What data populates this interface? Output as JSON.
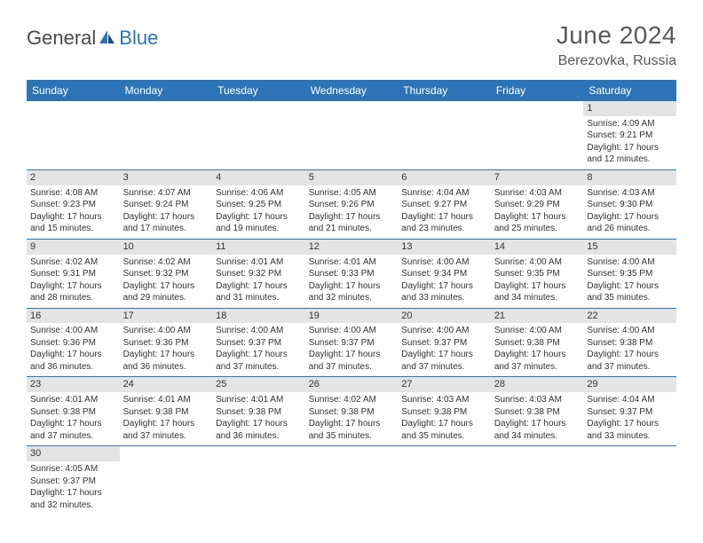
{
  "header": {
    "logo_part1": "General",
    "logo_part2": "Blue",
    "month_title": "June 2024",
    "location": "Berezovka, Russia"
  },
  "colors": {
    "header_bg": "#2d74b6",
    "header_text": "#ffffff",
    "daynum_bg": "#e4e4e4",
    "row_border": "#2d74b6",
    "logo_gray": "#4a4a4a",
    "logo_blue": "#2d74b6",
    "text_gray": "#5a5a5a"
  },
  "weekdays": [
    "Sunday",
    "Monday",
    "Tuesday",
    "Wednesday",
    "Thursday",
    "Friday",
    "Saturday"
  ],
  "weeks": [
    [
      null,
      null,
      null,
      null,
      null,
      null,
      {
        "n": "1",
        "sr": "4:09 AM",
        "ss": "9:21 PM",
        "dl": "17 hours and 12 minutes."
      }
    ],
    [
      {
        "n": "2",
        "sr": "4:08 AM",
        "ss": "9:23 PM",
        "dl": "17 hours and 15 minutes."
      },
      {
        "n": "3",
        "sr": "4:07 AM",
        "ss": "9:24 PM",
        "dl": "17 hours and 17 minutes."
      },
      {
        "n": "4",
        "sr": "4:06 AM",
        "ss": "9:25 PM",
        "dl": "17 hours and 19 minutes."
      },
      {
        "n": "5",
        "sr": "4:05 AM",
        "ss": "9:26 PM",
        "dl": "17 hours and 21 minutes."
      },
      {
        "n": "6",
        "sr": "4:04 AM",
        "ss": "9:27 PM",
        "dl": "17 hours and 23 minutes."
      },
      {
        "n": "7",
        "sr": "4:03 AM",
        "ss": "9:29 PM",
        "dl": "17 hours and 25 minutes."
      },
      {
        "n": "8",
        "sr": "4:03 AM",
        "ss": "9:30 PM",
        "dl": "17 hours and 26 minutes."
      }
    ],
    [
      {
        "n": "9",
        "sr": "4:02 AM",
        "ss": "9:31 PM",
        "dl": "17 hours and 28 minutes."
      },
      {
        "n": "10",
        "sr": "4:02 AM",
        "ss": "9:32 PM",
        "dl": "17 hours and 29 minutes."
      },
      {
        "n": "11",
        "sr": "4:01 AM",
        "ss": "9:32 PM",
        "dl": "17 hours and 31 minutes."
      },
      {
        "n": "12",
        "sr": "4:01 AM",
        "ss": "9:33 PM",
        "dl": "17 hours and 32 minutes."
      },
      {
        "n": "13",
        "sr": "4:00 AM",
        "ss": "9:34 PM",
        "dl": "17 hours and 33 minutes."
      },
      {
        "n": "14",
        "sr": "4:00 AM",
        "ss": "9:35 PM",
        "dl": "17 hours and 34 minutes."
      },
      {
        "n": "15",
        "sr": "4:00 AM",
        "ss": "9:35 PM",
        "dl": "17 hours and 35 minutes."
      }
    ],
    [
      {
        "n": "16",
        "sr": "4:00 AM",
        "ss": "9:36 PM",
        "dl": "17 hours and 36 minutes."
      },
      {
        "n": "17",
        "sr": "4:00 AM",
        "ss": "9:36 PM",
        "dl": "17 hours and 36 minutes."
      },
      {
        "n": "18",
        "sr": "4:00 AM",
        "ss": "9:37 PM",
        "dl": "17 hours and 37 minutes."
      },
      {
        "n": "19",
        "sr": "4:00 AM",
        "ss": "9:37 PM",
        "dl": "17 hours and 37 minutes."
      },
      {
        "n": "20",
        "sr": "4:00 AM",
        "ss": "9:37 PM",
        "dl": "17 hours and 37 minutes."
      },
      {
        "n": "21",
        "sr": "4:00 AM",
        "ss": "9:38 PM",
        "dl": "17 hours and 37 minutes."
      },
      {
        "n": "22",
        "sr": "4:00 AM",
        "ss": "9:38 PM",
        "dl": "17 hours and 37 minutes."
      }
    ],
    [
      {
        "n": "23",
        "sr": "4:01 AM",
        "ss": "9:38 PM",
        "dl": "17 hours and 37 minutes."
      },
      {
        "n": "24",
        "sr": "4:01 AM",
        "ss": "9:38 PM",
        "dl": "17 hours and 37 minutes."
      },
      {
        "n": "25",
        "sr": "4:01 AM",
        "ss": "9:38 PM",
        "dl": "17 hours and 36 minutes."
      },
      {
        "n": "26",
        "sr": "4:02 AM",
        "ss": "9:38 PM",
        "dl": "17 hours and 35 minutes."
      },
      {
        "n": "27",
        "sr": "4:03 AM",
        "ss": "9:38 PM",
        "dl": "17 hours and 35 minutes."
      },
      {
        "n": "28",
        "sr": "4:03 AM",
        "ss": "9:38 PM",
        "dl": "17 hours and 34 minutes."
      },
      {
        "n": "29",
        "sr": "4:04 AM",
        "ss": "9:37 PM",
        "dl": "17 hours and 33 minutes."
      }
    ],
    [
      {
        "n": "30",
        "sr": "4:05 AM",
        "ss": "9:37 PM",
        "dl": "17 hours and 32 minutes."
      },
      null,
      null,
      null,
      null,
      null,
      null
    ]
  ],
  "labels": {
    "sunrise": "Sunrise:",
    "sunset": "Sunset:",
    "daylight": "Daylight:"
  }
}
